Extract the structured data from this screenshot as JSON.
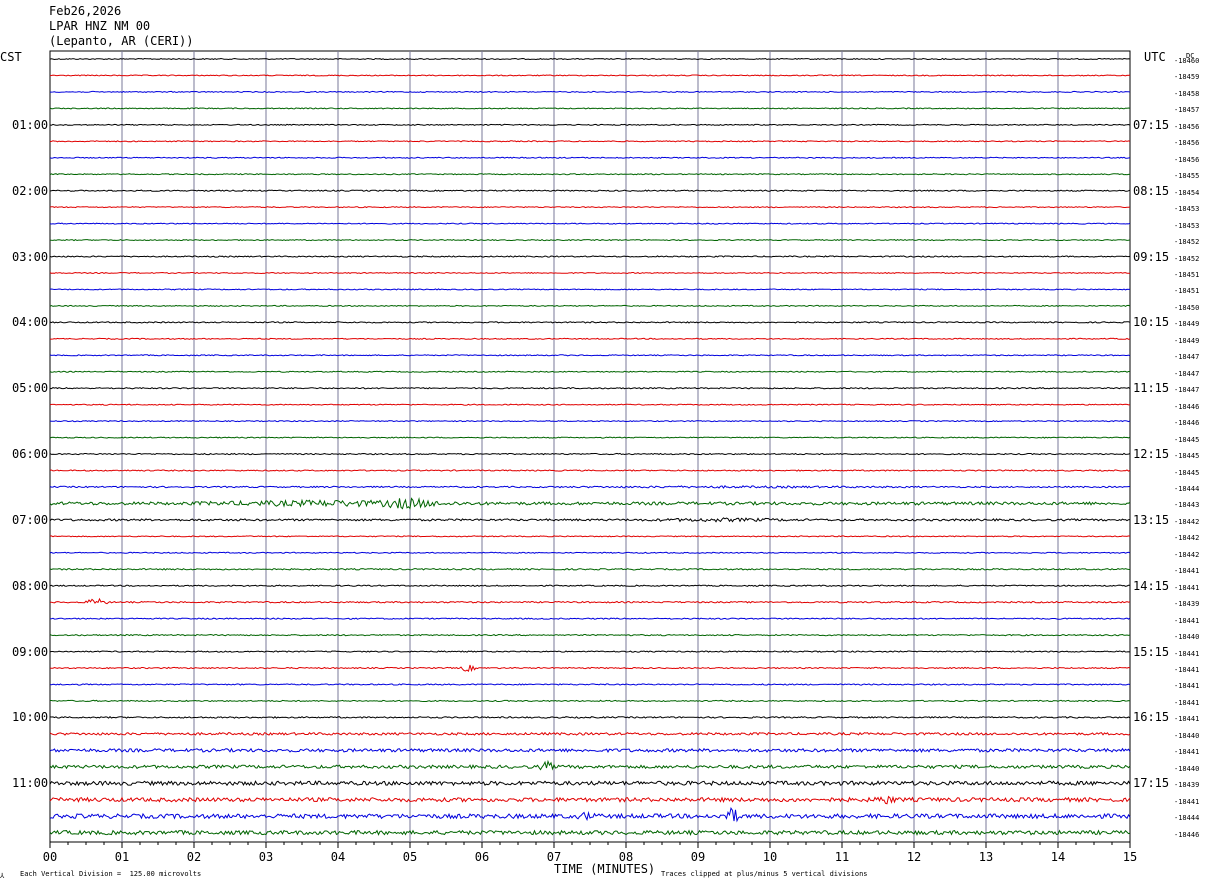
{
  "header": {
    "date": "Feb26,2026",
    "channel": "LPAR HNZ NM 00",
    "location": "(Lepanto, AR (CERI))"
  },
  "left_axis_label": "CST",
  "right_axis_label": "UTC",
  "dc_label": "DC",
  "footer": {
    "scale_note": "Each Vertical Division =  125.00 microvolts",
    "clip_note": "Traces clipped at plus/minus 5 vertical divisions"
  },
  "colors": {
    "black": "#000000",
    "red": "#e00000",
    "blue": "#0000dd",
    "green": "#006400",
    "grid": "#7a7a9a"
  },
  "chart_data": {
    "type": "line",
    "title": "LPAR HNZ NM 00",
    "xlabel": "TIME (MINUTES)",
    "xlim": [
      0,
      15
    ],
    "x_ticks": [
      "00",
      "01",
      "02",
      "03",
      "04",
      "05",
      "06",
      "07",
      "08",
      "09",
      "10",
      "11",
      "12",
      "13",
      "14",
      "15"
    ],
    "traces_per_hour": 4,
    "trace_color_cycle": [
      "black",
      "red",
      "blue",
      "green"
    ],
    "left_hour_labels": [
      "01:00",
      "02:00",
      "03:00",
      "04:00",
      "05:00",
      "06:00",
      "07:00",
      "08:00",
      "09:00",
      "10:00",
      "11:00"
    ],
    "right_hour_labels": [
      "07:15",
      "08:15",
      "09:15",
      "10:15",
      "11:15",
      "12:15",
      "13:15",
      "14:15",
      "15:15",
      "16:15",
      "17:15"
    ],
    "dc_offsets": [
      "-18460",
      "-18459",
      "-18458",
      "-18457",
      "-18456",
      "-18456",
      "-18456",
      "-18455",
      "-18454",
      "-18453",
      "-18453",
      "-18452",
      "-18452",
      "-18451",
      "-18451",
      "-18450",
      "-18449",
      "-18449",
      "-18447",
      "-18447",
      "-18447",
      "-18446",
      "-18446",
      "-18445",
      "-18445",
      "-18445",
      "-18444",
      "-18443",
      "-18442",
      "-18442",
      "-18442",
      "-18441",
      "-18441",
      "-18439",
      "-18441",
      "-18440",
      "-18441",
      "-18441",
      "-18441",
      "-18441",
      "-18441",
      "-18440",
      "-18441",
      "-18440",
      "-18439",
      "-18441",
      "-18444",
      "-18446"
    ],
    "noise_levels": [
      0.5,
      0.5,
      0.5,
      0.5,
      0.5,
      0.5,
      0.5,
      0.5,
      0.6,
      0.5,
      0.5,
      0.5,
      0.6,
      0.5,
      0.5,
      0.5,
      0.6,
      0.5,
      0.5,
      0.5,
      0.6,
      0.5,
      0.5,
      0.5,
      0.6,
      0.6,
      0.7,
      1.5,
      1.0,
      0.5,
      0.5,
      0.7,
      0.6,
      0.7,
      0.6,
      0.6,
      0.6,
      0.6,
      0.6,
      0.6,
      0.7,
      1.2,
      1.6,
      1.6,
      2.0,
      2.0,
      2.2,
      2.0
    ],
    "events": [
      {
        "trace": 26,
        "start_min": 5.5,
        "end_min": 13.5,
        "amplitude": 1.2
      },
      {
        "trace": 27,
        "start_min": 1.6,
        "end_min": 6.2,
        "amplitude": 3.5
      },
      {
        "trace": 27,
        "start_min": 4.5,
        "end_min": 5.4,
        "amplitude": 6
      },
      {
        "trace": 28,
        "start_min": 7.8,
        "end_min": 10.8,
        "amplitude": 2
      },
      {
        "trace": 33,
        "start_min": 0.5,
        "end_min": 0.8,
        "amplitude": 4
      },
      {
        "trace": 37,
        "start_min": 5.7,
        "end_min": 5.9,
        "amplitude": 4
      },
      {
        "trace": 43,
        "start_min": 6.8,
        "end_min": 7.0,
        "amplitude": 6
      },
      {
        "trace": 46,
        "start_min": 9.35,
        "end_min": 9.55,
        "amplitude": 12
      },
      {
        "trace": 46,
        "start_min": 7.3,
        "end_min": 7.6,
        "amplitude": 5
      },
      {
        "trace": 45,
        "start_min": 11.4,
        "end_min": 11.8,
        "amplitude": 5
      }
    ]
  }
}
